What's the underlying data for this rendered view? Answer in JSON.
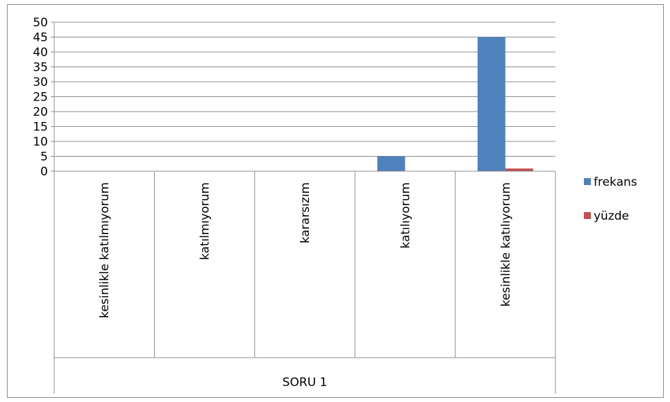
{
  "chart_data": {
    "type": "bar",
    "categories": [
      "kesinlikle katılmıyorum",
      "katılmıyorum",
      "kararsızım",
      "katılıyorum",
      "kesinlikle katılıyorum"
    ],
    "group_label": "SORU 1",
    "series": [
      {
        "name": "frekans",
        "color": "#4f81bd",
        "values": [
          0,
          0,
          0,
          5,
          45
        ]
      },
      {
        "name": "yüzde",
        "color": "#c0504d",
        "values": [
          0,
          0,
          0,
          0.1,
          0.9
        ]
      }
    ],
    "ylim": [
      0,
      50
    ],
    "yticks": [
      0,
      5,
      10,
      15,
      20,
      25,
      30,
      35,
      40,
      45,
      50
    ],
    "grid": true,
    "legend_position": "right"
  }
}
